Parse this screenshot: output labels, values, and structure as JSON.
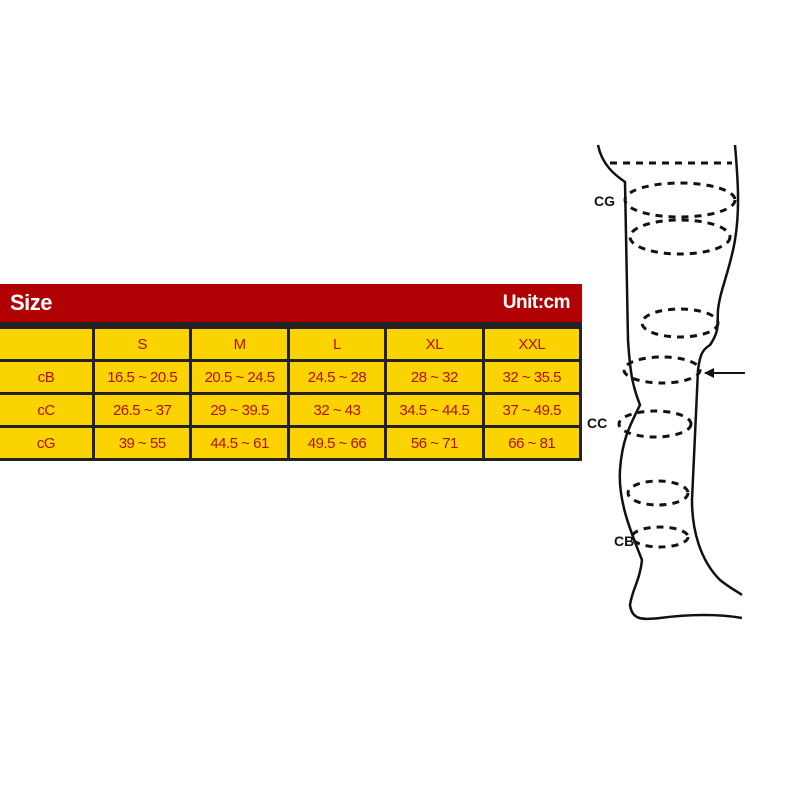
{
  "table": {
    "title": "Size",
    "unit": "Unit:cm",
    "header": [
      "",
      "S",
      "M",
      "L",
      "XL",
      "XXL"
    ],
    "rows": [
      [
        "cB",
        "16.5 ~ 20.5",
        "20.5 ~ 24.5",
        "24.5 ~ 28",
        "28 ~ 32",
        "32 ~ 35.5"
      ],
      [
        "cC",
        "26.5 ~ 37",
        "29 ~ 39.5",
        "32 ~ 43",
        "34.5 ~ 44.5",
        "37 ~ 49.5"
      ],
      [
        "cG",
        "39 ~ 55",
        "44.5 ~ 61",
        "49.5 ~ 66",
        "56 ~ 71",
        "66 ~ 81"
      ]
    ],
    "colors": {
      "header": "#b00004",
      "cell": "#fbd400",
      "text": "#b01010"
    }
  },
  "diagram": {
    "labels": [
      "CG",
      "CC",
      "CB"
    ]
  }
}
